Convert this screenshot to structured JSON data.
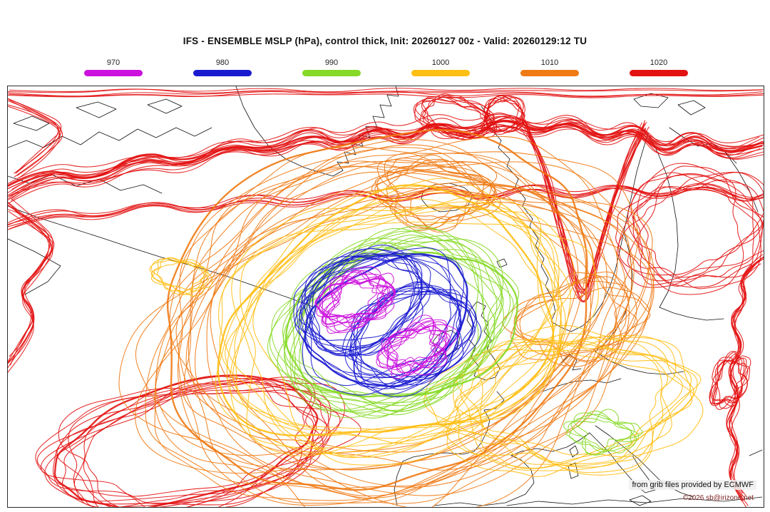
{
  "header": {
    "title": "IFS - ENSEMBLE MSLP (hPa), control thick, Init: 20260127 00z - Valid: 20260129:12 TU"
  },
  "legend": {
    "items": [
      {
        "value": "970",
        "color": "#cc10dd"
      },
      {
        "value": "980",
        "color": "#1a1ad0"
      },
      {
        "value": "990",
        "color": "#86d926"
      },
      {
        "value": "1000",
        "color": "#ffbe12"
      },
      {
        "value": "1010",
        "color": "#f07a14"
      },
      {
        "value": "1020",
        "color": "#e31212"
      }
    ]
  },
  "credits": {
    "source": "from grib files provided by ECMWF",
    "copyright": "©2026 sb@irizone.net"
  },
  "chart_data": {
    "type": "contour-ensemble-spaghetti",
    "field": "MSLP (hPa)",
    "model": "IFS - ENSEMBLE",
    "init": "20260127 00z",
    "valid": "20260129:12 TU",
    "levels": [
      970,
      980,
      990,
      1000,
      1010,
      1020
    ],
    "level_colors": [
      "#cc10dd",
      "#1a1ad0",
      "#86d926",
      "#ffbe12",
      "#f07a14",
      "#e31212"
    ],
    "notes": "control member drawn thick; low pressure system centered over NE Atlantic west of the British Isles"
  },
  "map": {
    "coast_color": "#111111",
    "background": "#ffffff",
    "border_color": "#2a2a2a"
  }
}
